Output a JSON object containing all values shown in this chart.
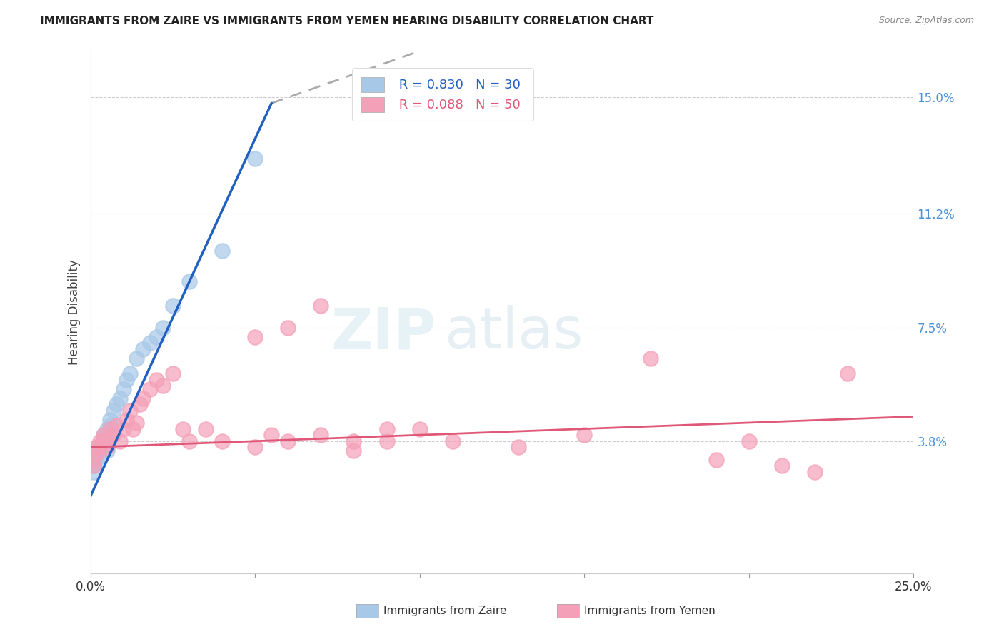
{
  "title": "IMMIGRANTS FROM ZAIRE VS IMMIGRANTS FROM YEMEN HEARING DISABILITY CORRELATION CHART",
  "source": "Source: ZipAtlas.com",
  "ylabel": "Hearing Disability",
  "legend_label1": "Immigrants from Zaire",
  "legend_label2": "Immigrants from Yemen",
  "R1": 0.83,
  "N1": 30,
  "R2": 0.088,
  "N2": 50,
  "xlim": [
    0.0,
    0.25
  ],
  "ylim": [
    -0.005,
    0.165
  ],
  "ytick_vals": [
    0.038,
    0.075,
    0.112,
    0.15
  ],
  "ytick_labels": [
    "3.8%",
    "7.5%",
    "11.2%",
    "15.0%"
  ],
  "color_zaire": "#a8c8e8",
  "color_yemen": "#f4a0b8",
  "color_line_zaire": "#2060c0",
  "color_line_yemen": "#e05878",
  "color_right_labels": "#4a90d9",
  "watermark_zip": "ZIP",
  "watermark_atlas": "atlas",
  "zaire_x": [
    0.001,
    0.001,
    0.001,
    0.002,
    0.002,
    0.002,
    0.003,
    0.003,
    0.004,
    0.004,
    0.005,
    0.005,
    0.005,
    0.006,
    0.006,
    0.007,
    0.008,
    0.009,
    0.01,
    0.011,
    0.012,
    0.014,
    0.016,
    0.018,
    0.02,
    0.022,
    0.025,
    0.03,
    0.04,
    0.05
  ],
  "zaire_y": [
    0.028,
    0.03,
    0.032,
    0.031,
    0.034,
    0.036,
    0.033,
    0.035,
    0.038,
    0.04,
    0.035,
    0.038,
    0.042,
    0.043,
    0.045,
    0.048,
    0.05,
    0.052,
    0.055,
    0.058,
    0.06,
    0.065,
    0.068,
    0.07,
    0.072,
    0.075,
    0.082,
    0.09,
    0.1,
    0.13
  ],
  "yemen_x": [
    0.001,
    0.001,
    0.002,
    0.002,
    0.003,
    0.003,
    0.004,
    0.004,
    0.005,
    0.005,
    0.006,
    0.007,
    0.008,
    0.009,
    0.01,
    0.011,
    0.012,
    0.013,
    0.014,
    0.015,
    0.016,
    0.018,
    0.02,
    0.022,
    0.025,
    0.028,
    0.03,
    0.035,
    0.04,
    0.05,
    0.055,
    0.06,
    0.07,
    0.08,
    0.09,
    0.1,
    0.11,
    0.13,
    0.15,
    0.17,
    0.19,
    0.2,
    0.21,
    0.22,
    0.23,
    0.05,
    0.06,
    0.07,
    0.08,
    0.09
  ],
  "yemen_y": [
    0.03,
    0.032,
    0.034,
    0.036,
    0.036,
    0.038,
    0.038,
    0.04,
    0.036,
    0.038,
    0.042,
    0.04,
    0.043,
    0.038,
    0.042,
    0.045,
    0.048,
    0.042,
    0.044,
    0.05,
    0.052,
    0.055,
    0.058,
    0.056,
    0.06,
    0.042,
    0.038,
    0.042,
    0.038,
    0.036,
    0.04,
    0.038,
    0.04,
    0.038,
    0.042,
    0.042,
    0.038,
    0.036,
    0.04,
    0.065,
    0.032,
    0.038,
    0.03,
    0.028,
    0.06,
    0.072,
    0.075,
    0.082,
    0.035,
    0.038
  ],
  "line_zaire_x0": 0.0,
  "line_zaire_y0": 0.02,
  "line_zaire_x1": 0.055,
  "line_zaire_y1": 0.148,
  "line_zaire_dash_x1": 0.1,
  "line_zaire_dash_y1": 0.165,
  "line_yemen_x0": 0.0,
  "line_yemen_y0": 0.036,
  "line_yemen_x1": 0.25,
  "line_yemen_y1": 0.046
}
